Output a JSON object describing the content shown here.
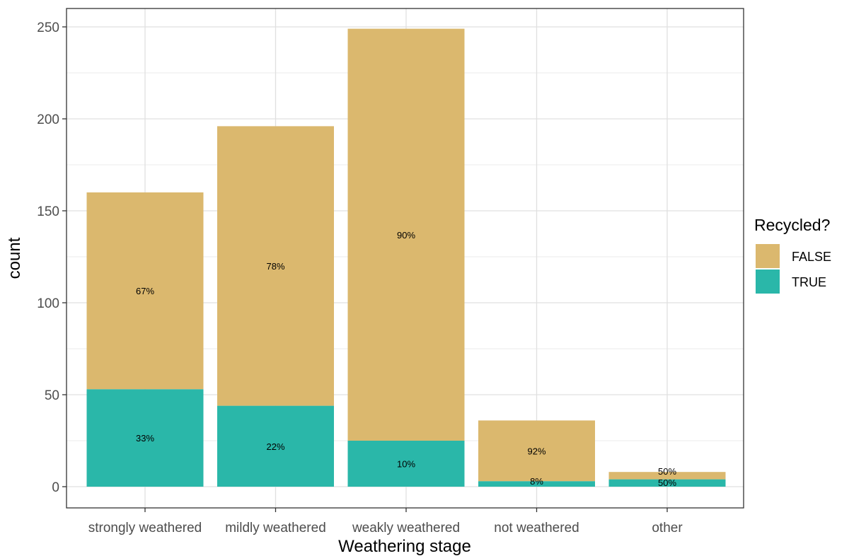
{
  "chart_data": {
    "type": "bar",
    "stacked": true,
    "title": "",
    "xlabel": "Weathering stage",
    "ylabel": "count",
    "categories": [
      "strongly weathered",
      "mildly weathered",
      "weakly weathered",
      "not weathered",
      "other"
    ],
    "series": [
      {
        "name": "TRUE",
        "color": "#2ab7a9",
        "values": [
          53,
          44,
          25,
          3,
          4
        ],
        "labels": [
          "33%",
          "22%",
          "10%",
          "8%",
          "50%"
        ]
      },
      {
        "name": "FALSE",
        "color": "#dbb86e",
        "values": [
          107,
          152,
          224,
          33,
          4
        ],
        "labels": [
          "67%",
          "78%",
          "90%",
          "92%",
          "50%"
        ]
      }
    ],
    "ylim": [
      0,
      255
    ],
    "yticks": [
      0,
      50,
      100,
      150,
      200,
      250
    ],
    "grid": true,
    "legend": {
      "title": "Recycled?",
      "placement": "right",
      "entries": [
        {
          "label": "FALSE",
          "color": "#dbb86e"
        },
        {
          "label": "TRUE",
          "color": "#2ab7a9"
        }
      ]
    }
  }
}
